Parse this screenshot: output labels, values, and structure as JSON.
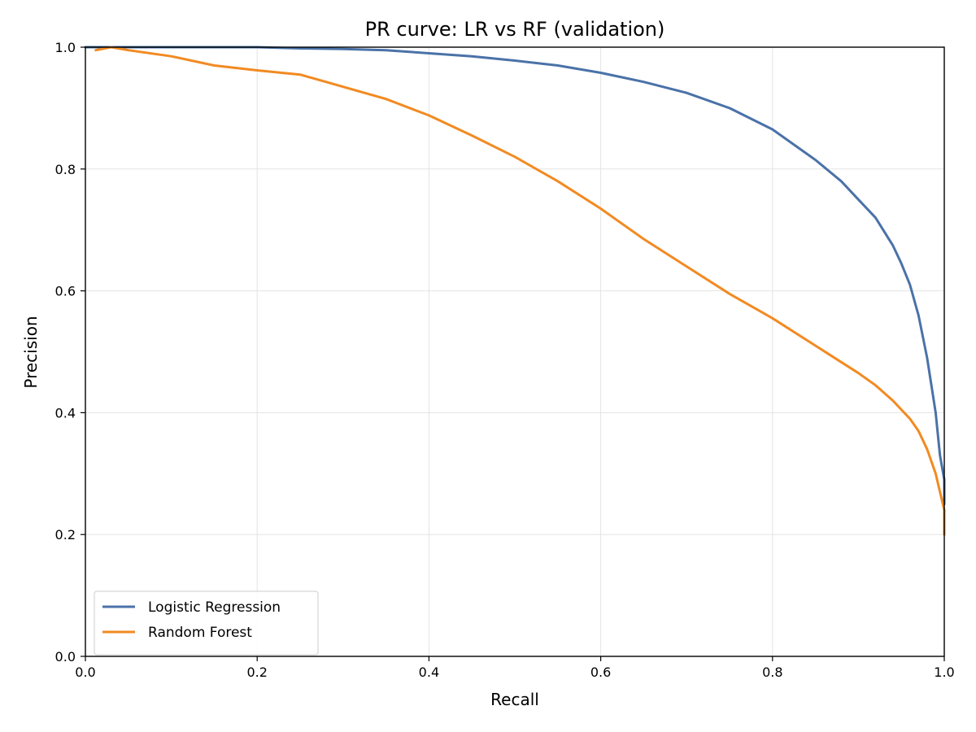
{
  "chart_data": {
    "type": "line",
    "title": "PR curve: LR vs RF (validation)",
    "xlabel": "Recall",
    "ylabel": "Precision",
    "xlim": [
      0.0,
      1.0
    ],
    "ylim": [
      0.0,
      1.0
    ],
    "xticks": [
      "0.0",
      "0.2",
      "0.4",
      "0.6",
      "0.8",
      "1.0"
    ],
    "yticks": [
      "0.0",
      "0.2",
      "0.4",
      "0.6",
      "0.8",
      "1.0"
    ],
    "grid": true,
    "legend": "lower-left",
    "series": [
      {
        "name": "Logistic Regression",
        "color": "#4a72a8",
        "x": [
          0.0,
          0.05,
          0.1,
          0.15,
          0.2,
          0.25,
          0.3,
          0.35,
          0.4,
          0.45,
          0.5,
          0.55,
          0.6,
          0.65,
          0.7,
          0.75,
          0.8,
          0.85,
          0.88,
          0.9,
          0.92,
          0.94,
          0.95,
          0.96,
          0.97,
          0.98,
          0.99,
          0.995,
          1.0,
          1.0
        ],
        "y": [
          1.0,
          1.0,
          1.0,
          1.0,
          1.0,
          0.998,
          0.997,
          0.995,
          0.99,
          0.985,
          0.978,
          0.97,
          0.958,
          0.943,
          0.925,
          0.9,
          0.865,
          0.815,
          0.78,
          0.75,
          0.72,
          0.675,
          0.645,
          0.61,
          0.56,
          0.49,
          0.4,
          0.33,
          0.29,
          0.25
        ]
      },
      {
        "name": "Random Forest",
        "color": "#f28a21",
        "x": [
          0.012,
          0.03,
          0.05,
          0.1,
          0.15,
          0.2,
          0.25,
          0.3,
          0.35,
          0.4,
          0.45,
          0.5,
          0.55,
          0.6,
          0.65,
          0.7,
          0.75,
          0.8,
          0.85,
          0.9,
          0.92,
          0.94,
          0.96,
          0.97,
          0.98,
          0.99,
          0.995,
          1.0,
          1.0
        ],
        "y": [
          0.995,
          1.0,
          0.995,
          0.985,
          0.97,
          0.962,
          0.955,
          0.935,
          0.915,
          0.888,
          0.855,
          0.82,
          0.78,
          0.735,
          0.685,
          0.64,
          0.595,
          0.555,
          0.51,
          0.465,
          0.445,
          0.42,
          0.39,
          0.37,
          0.34,
          0.3,
          0.27,
          0.24,
          0.2
        ]
      }
    ]
  }
}
